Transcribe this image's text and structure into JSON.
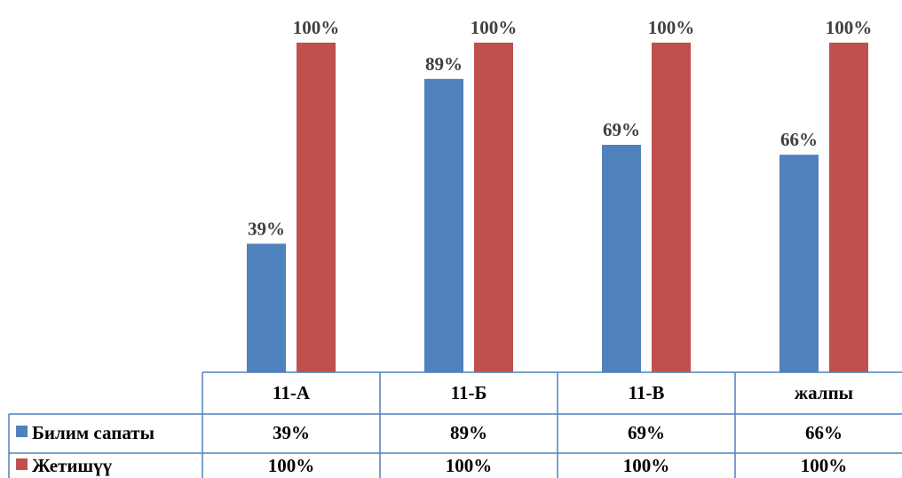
{
  "chart_data": {
    "type": "bar",
    "categories": [
      "11-А",
      "11-Б",
      "11-В",
      "жалпы"
    ],
    "ylim": [
      0,
      100
    ],
    "grid": false,
    "legend": "data-table-left",
    "series": [
      {
        "name": "Билим сапаты",
        "color": "#4f81bd",
        "values": [
          39,
          89,
          69,
          66
        ],
        "labels": [
          "39%",
          "89%",
          "69%",
          "66%"
        ]
      },
      {
        "name": "Жетишүү",
        "color": "#c0504d",
        "values": [
          100,
          100,
          100,
          100
        ],
        "labels": [
          "100%",
          "100%",
          "100%",
          "100%"
        ]
      }
    ]
  }
}
